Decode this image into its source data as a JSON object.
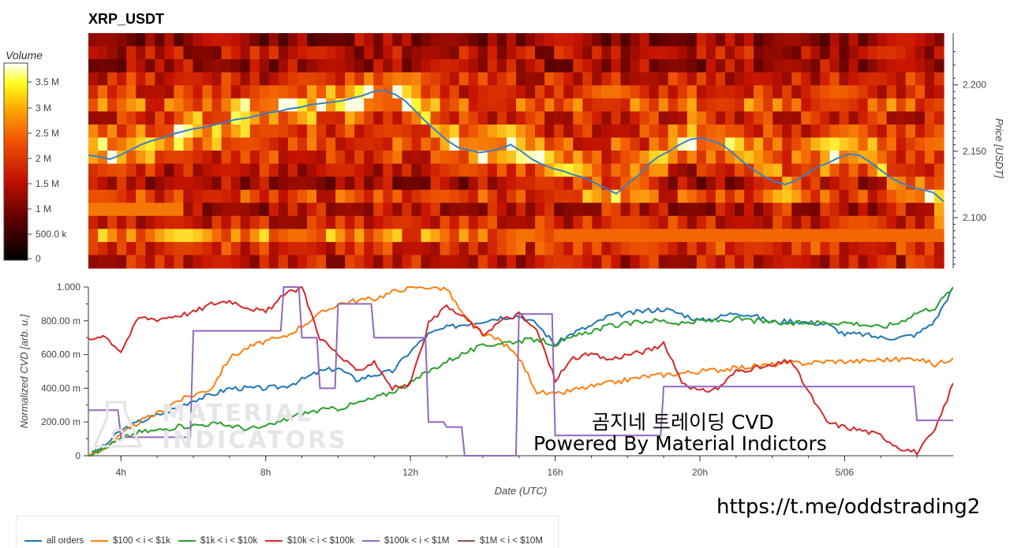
{
  "title": "XRP_USDT",
  "colorbar": {
    "label": "Volume",
    "ticks": [
      "3.5 M",
      "3 M",
      "2.5 M",
      "2 M",
      "1.5 M",
      "1 M",
      "500.0 k",
      "0"
    ]
  },
  "heatmap": {
    "price_axis_label": "Price [USDT]",
    "price_ticks": [
      "2.200",
      "2.150",
      "2.100"
    ],
    "price_range": [
      2.062,
      2.239
    ],
    "price_line": [
      2.147,
      2.146,
      2.144,
      2.147,
      2.151,
      2.155,
      2.158,
      2.16,
      2.163,
      2.165,
      2.167,
      2.168,
      2.17,
      2.172,
      2.174,
      2.175,
      2.177,
      2.179,
      2.18,
      2.182,
      2.183,
      2.185,
      2.186,
      2.187,
      2.188,
      2.19,
      2.192,
      2.195,
      2.196,
      2.193,
      2.188,
      2.18,
      2.172,
      2.165,
      2.158,
      2.153,
      2.151,
      2.149,
      2.15,
      2.152,
      2.155,
      2.15,
      2.144,
      2.14,
      2.137,
      2.135,
      2.132,
      2.13,
      2.126,
      2.122,
      2.118,
      2.125,
      2.131,
      2.14,
      2.146,
      2.15,
      2.155,
      2.159,
      2.16,
      2.158,
      2.155,
      2.149,
      2.142,
      2.136,
      2.131,
      2.127,
      2.125,
      2.128,
      2.133,
      2.138,
      2.141,
      2.145,
      2.148,
      2.147,
      2.142,
      2.136,
      2.13,
      2.126,
      2.123,
      2.121,
      2.119,
      2.112
    ]
  },
  "cvd": {
    "y_axis_label": "Normalized CVD [arb. u.]",
    "x_axis_label": "Date (UTC)",
    "y_ticks": [
      "1.000",
      "800.00 m",
      "600.00 m",
      "400.00 m",
      "200.00 m",
      "0"
    ],
    "x_ticks": [
      "4h",
      "8h",
      "12h",
      "16h",
      "20h",
      "5/06"
    ]
  },
  "chart_data": {
    "type": "line",
    "title": "XRP_USDT",
    "xlabel": "Date (UTC)",
    "ylabel": "Normalized CVD [arb. u.]",
    "ylim": [
      0,
      1
    ],
    "xlim_hours": [
      3.1,
      27.0
    ],
    "x_tick_labels": [
      "4h",
      "8h",
      "12h",
      "16h",
      "20h",
      "5/06"
    ],
    "x_hours": [
      3.1,
      3.5,
      4,
      4.5,
      5,
      5.5,
      6,
      6.5,
      7,
      7.5,
      8,
      8.5,
      9,
      9.5,
      10,
      10.5,
      11,
      11.5,
      12,
      12.5,
      13,
      13.5,
      14,
      14.5,
      15,
      15.5,
      16,
      16.5,
      17,
      17.5,
      18,
      18.5,
      19,
      19.5,
      20,
      20.5,
      21,
      21.5,
      22,
      22.5,
      23,
      23.5,
      24,
      24.5,
      25,
      25.5,
      26,
      26.5,
      27.0
    ],
    "series": [
      {
        "name": "all orders",
        "color": "#1f77b4",
        "values": [
          0.0,
          0.05,
          0.15,
          0.2,
          0.24,
          0.28,
          0.33,
          0.36,
          0.4,
          0.4,
          0.4,
          0.41,
          0.45,
          0.5,
          0.52,
          0.45,
          0.48,
          0.5,
          0.62,
          0.72,
          0.76,
          0.78,
          0.8,
          0.82,
          0.83,
          0.78,
          0.66,
          0.73,
          0.77,
          0.83,
          0.84,
          0.86,
          0.87,
          0.84,
          0.8,
          0.82,
          0.85,
          0.83,
          0.79,
          0.8,
          0.79,
          0.78,
          0.72,
          0.72,
          0.7,
          0.7,
          0.72,
          0.8,
          1.0
        ]
      },
      {
        "name": "$100 < i < $1k",
        "color": "#ff7f0e",
        "values": [
          0.0,
          0.04,
          0.12,
          0.2,
          0.25,
          0.32,
          0.36,
          0.4,
          0.58,
          0.64,
          0.68,
          0.7,
          0.77,
          0.84,
          0.9,
          0.92,
          0.93,
          0.97,
          1.0,
          1.0,
          0.99,
          0.82,
          0.72,
          0.68,
          0.58,
          0.38,
          0.36,
          0.39,
          0.41,
          0.43,
          0.45,
          0.47,
          0.48,
          0.49,
          0.5,
          0.51,
          0.52,
          0.53,
          0.54,
          0.55,
          0.55,
          0.56,
          0.56,
          0.56,
          0.57,
          0.57,
          0.58,
          0.54,
          0.58
        ]
      },
      {
        "name": "$1k < i < $10k",
        "color": "#2ca02c",
        "values": [
          0.0,
          0.04,
          0.1,
          0.14,
          0.15,
          0.17,
          0.18,
          0.19,
          0.18,
          0.16,
          0.17,
          0.21,
          0.25,
          0.27,
          0.28,
          0.31,
          0.34,
          0.38,
          0.43,
          0.5,
          0.56,
          0.61,
          0.65,
          0.67,
          0.68,
          0.69,
          0.66,
          0.7,
          0.74,
          0.77,
          0.78,
          0.8,
          0.8,
          0.78,
          0.8,
          0.8,
          0.81,
          0.8,
          0.79,
          0.78,
          0.79,
          0.79,
          0.79,
          0.78,
          0.76,
          0.79,
          0.85,
          0.88,
          1.0
        ]
      },
      {
        "name": "$10k < i < $100k",
        "color": "#d62728",
        "values": [
          0.68,
          0.72,
          0.62,
          0.82,
          0.81,
          0.83,
          0.85,
          0.9,
          0.92,
          0.88,
          0.85,
          0.95,
          1.0,
          0.7,
          0.6,
          0.5,
          0.56,
          0.4,
          0.42,
          0.78,
          0.88,
          0.82,
          0.72,
          0.8,
          0.84,
          0.74,
          0.45,
          0.58,
          0.6,
          0.57,
          0.6,
          0.62,
          0.66,
          0.44,
          0.38,
          0.4,
          0.5,
          0.52,
          0.53,
          0.57,
          0.38,
          0.2,
          0.17,
          0.15,
          0.12,
          0.05,
          0.02,
          0.15,
          0.43
        ]
      },
      {
        "name": "$100k < i < $1M",
        "color": "#9467bd",
        "values": [
          0.27,
          0.27,
          0.11,
          0.11,
          0.11,
          0.11,
          0.74,
          0.74,
          0.74,
          0.74,
          0.74,
          1.0,
          0.7,
          0.4,
          0.9,
          0.9,
          0.7,
          0.7,
          0.7,
          0.2,
          0.17,
          0.0,
          0.0,
          0.0,
          0.84,
          0.84,
          0.12,
          0.12,
          0.12,
          0.12,
          0.12,
          0.12,
          0.41,
          0.41,
          0.41,
          0.41,
          0.41,
          0.41,
          0.41,
          0.41,
          0.41,
          0.41,
          0.41,
          0.41,
          0.41,
          0.41,
          0.21,
          0.21,
          0.21
        ]
      },
      {
        "name": "$1M < i < $10M",
        "color": "#8c564b",
        "values": []
      }
    ]
  },
  "legend": [
    {
      "label": "all orders",
      "color": "#1f77b4"
    },
    {
      "label": "$100 < i < $1k",
      "color": "#ff7f0e"
    },
    {
      "label": "$1k < i < $10k",
      "color": "#2ca02c"
    },
    {
      "label": "$10k < i < $100k",
      "color": "#d62728"
    },
    {
      "label": "$100k < i < $1M",
      "color": "#9467bd"
    },
    {
      "label": "$1M < i < $10M",
      "color": "#8c564b"
    }
  ],
  "watermark": {
    "line1": "곰지네 트레이딩 CVD",
    "line2": "Powered By Material Indictors",
    "logo_line1": "MATERIAL",
    "logo_line2": "INDICATORS",
    "url": "https://t.me/oddstrading2"
  }
}
